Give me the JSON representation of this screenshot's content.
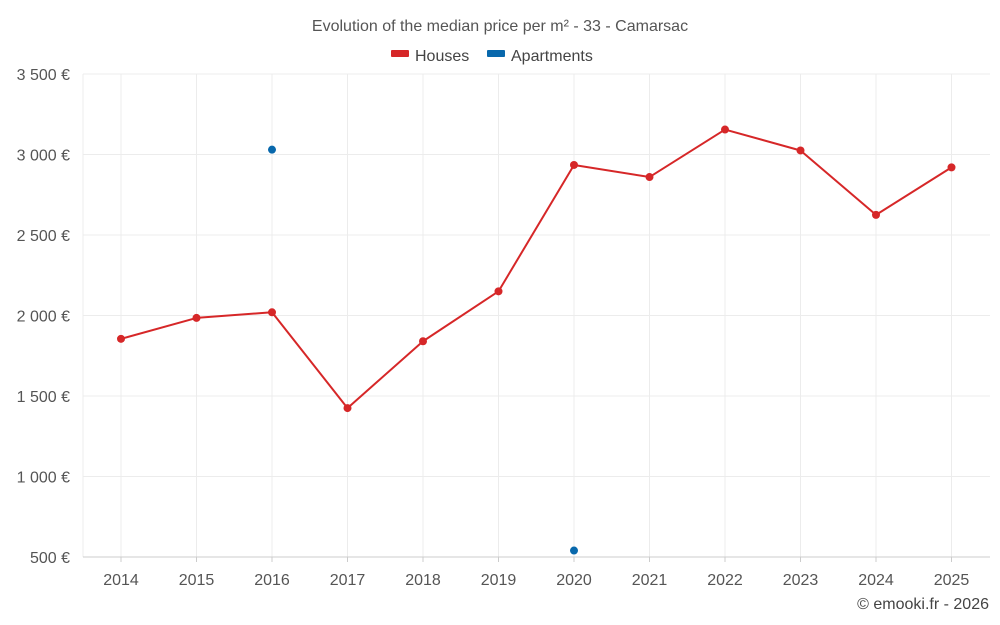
{
  "chart_data": {
    "type": "line",
    "title": "Evolution of the median price per m² - 33 - Camarsac",
    "xlabel": "",
    "ylabel": "",
    "categories": [
      "2014",
      "2015",
      "2016",
      "2017",
      "2018",
      "2019",
      "2020",
      "2021",
      "2022",
      "2023",
      "2024",
      "2025"
    ],
    "ylim": [
      500,
      3500
    ],
    "yticks": [
      500,
      1000,
      1500,
      2000,
      2500,
      3000,
      3500
    ],
    "ytick_labels": [
      "500 €",
      "1 000 €",
      "1 500 €",
      "2 000 €",
      "2 500 €",
      "3 000 €",
      "3 500 €"
    ],
    "grid": true,
    "legend_position": "top-center",
    "series": [
      {
        "name": "Houses",
        "color": "#d62728",
        "values": [
          1855,
          1985,
          2020,
          1425,
          1840,
          2150,
          2935,
          2860,
          3155,
          3025,
          2625,
          2920
        ]
      },
      {
        "name": "Apartments",
        "color": "#0868ac",
        "values": [
          null,
          null,
          3030,
          null,
          null,
          null,
          540,
          null,
          null,
          null,
          null,
          null
        ]
      }
    ],
    "credit": "© emooki.fr - 2026"
  }
}
